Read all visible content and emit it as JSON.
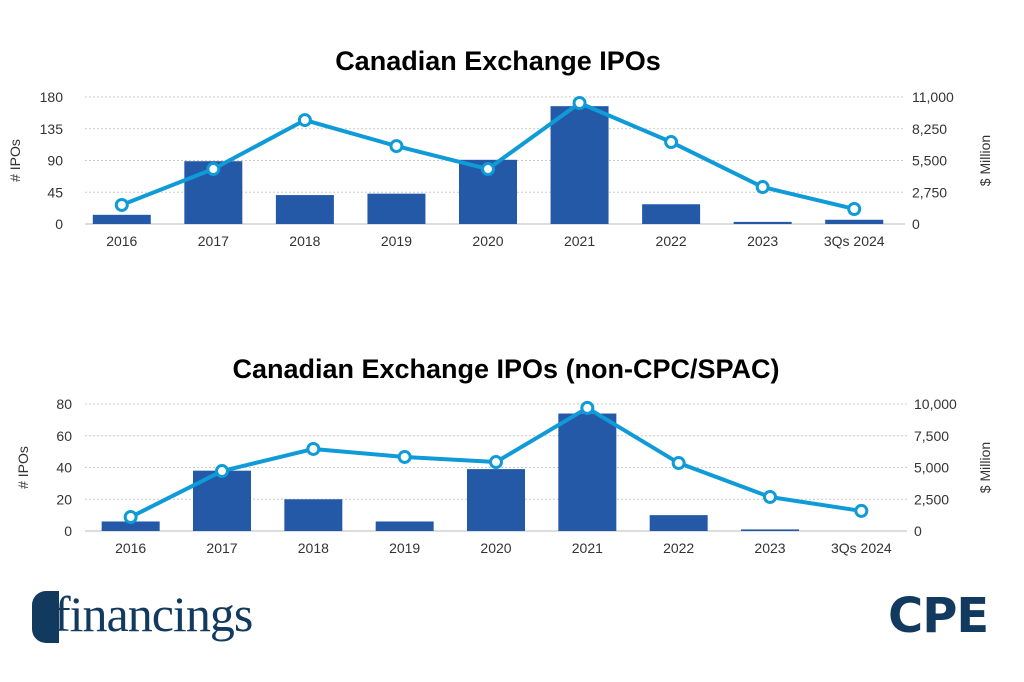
{
  "chart_data": [
    {
      "type": "bar+line",
      "title": "Canadian Exchange IPOs",
      "categories": [
        "2016",
        "2017",
        "2018",
        "2019",
        "2020",
        "2021",
        "2022",
        "2023",
        "3Qs 2024"
      ],
      "ylabel": "# IPOs",
      "y2label": "$ Million",
      "ylim": [
        0,
        180
      ],
      "yticks": [
        "0",
        "45",
        "90",
        "135",
        "180"
      ],
      "y2lim": [
        0,
        11000
      ],
      "y2ticks": [
        "0",
        "2,750",
        "5,500",
        "8,250",
        "11,000"
      ],
      "grid": true,
      "series": [
        {
          "kind": "bar",
          "axis": "left",
          "color": "#2459a8",
          "values": [
            13,
            89,
            41,
            43,
            91,
            167,
            28,
            3,
            6
          ]
        },
        {
          "kind": "line",
          "axis": "right",
          "color": "#0f9ad8",
          "values": [
            1650,
            4760,
            9000,
            6750,
            4760,
            10480,
            7100,
            3200,
            1300
          ]
        }
      ]
    },
    {
      "type": "bar+line",
      "title": "Canadian Exchange IPOs (non-CPC/SPAC)",
      "categories": [
        "2016",
        "2017",
        "2018",
        "2019",
        "2020",
        "2021",
        "2022",
        "2023",
        "3Qs 2024"
      ],
      "ylabel": "# IPOs",
      "y2label": "$ Million",
      "ylim": [
        0,
        80
      ],
      "yticks": [
        "0",
        "20",
        "40",
        "60",
        "80"
      ],
      "y2lim": [
        0,
        10000
      ],
      "y2ticks": [
        "0",
        "2,500",
        "5,000",
        "7,500",
        "10,000"
      ],
      "grid": true,
      "series": [
        {
          "kind": "bar",
          "axis": "left",
          "color": "#2459a8",
          "values": [
            6,
            38,
            20,
            6,
            39,
            74,
            10,
            1,
            0
          ]
        },
        {
          "kind": "line",
          "axis": "right",
          "color": "#0f9ad8",
          "values": [
            1100,
            4720,
            6460,
            5830,
            5430,
            9690,
            5350,
            2680,
            1580
          ]
        }
      ]
    }
  ],
  "logos": {
    "left": "financings",
    "right": "CPE"
  }
}
